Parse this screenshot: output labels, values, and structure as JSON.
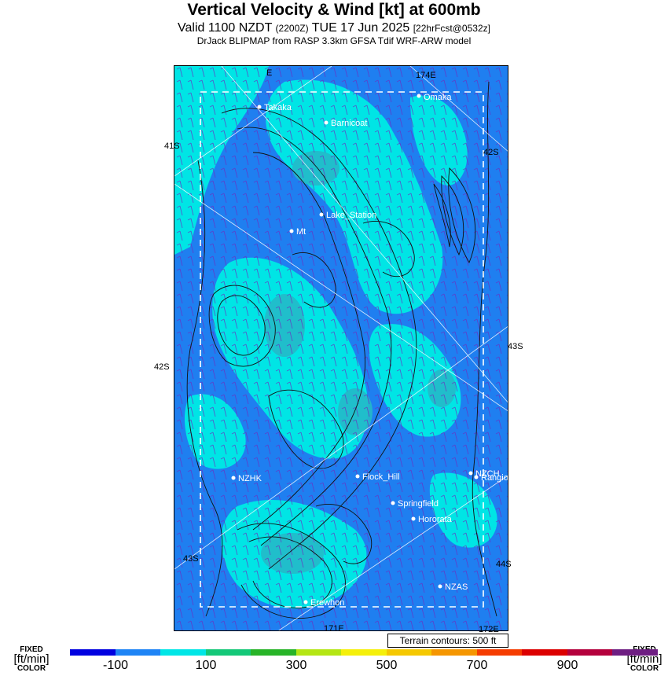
{
  "header": {
    "title": "Vertical Velocity & Wind [kt] at 600mb",
    "valid_prefix": "Valid 1100 NZDT",
    "valid_utc": "(2200Z)",
    "valid_date": "TUE 17 Jun 2025",
    "forecast": "[22hrFcst@0532z]",
    "model": "DrJack BLIPMAP from RASP 3.3km GFSA Tdif WRF-ARW model"
  },
  "map": {
    "places": [
      "Takaka",
      "Omaka",
      "Barnicoat",
      "Lake_Station",
      "Mt",
      "NZHK",
      "Flock_Hill",
      "NZCH",
      "Rangiora",
      "Springfield",
      "Hororata",
      "NZAS",
      "Erewhon"
    ],
    "grid_labels": {
      "top_left": "E",
      "top_right": "174E",
      "left_upper": "41S",
      "right_upper": "42S",
      "left_mid": "42S",
      "right_mid": "43S",
      "left_lower": "43S",
      "right_lower": "44S",
      "bottom_mid": "171E",
      "bottom_right": "172E"
    },
    "terrain_note": "Terrain contours: 500 ft"
  },
  "legend": {
    "left_top": "FIXED",
    "left_mid": "[ft/min]",
    "left_bot": "COLOR",
    "right_top": "FIXED",
    "right_mid": "[ft/min]",
    "right_bot": "COLOR",
    "labels": [
      "-100",
      "100",
      "300",
      "500",
      "700",
      "900"
    ],
    "colors": [
      "#0000e0",
      "#1e84f5",
      "#00e6e6",
      "#14c878",
      "#28b428",
      "#b4e614",
      "#f5f00a",
      "#f5c800",
      "#f59600",
      "#f53c00",
      "#dc0000",
      "#b4003c",
      "#6e1e82"
    ]
  }
}
